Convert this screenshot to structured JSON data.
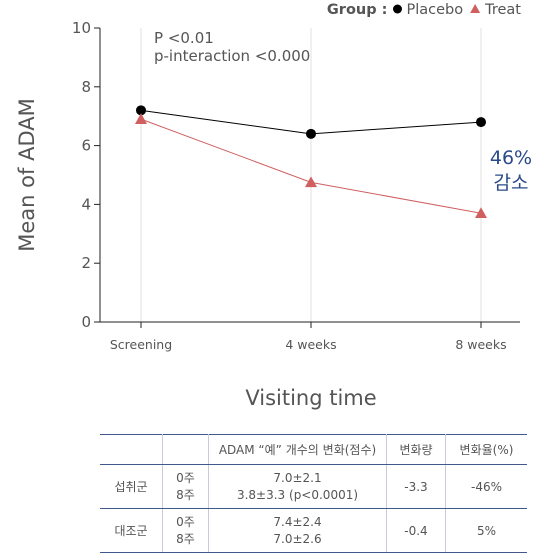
{
  "chart_data": {
    "type": "line",
    "categories": [
      "Screening",
      "4 weeks",
      "8 weeks"
    ],
    "series": [
      {
        "name": "Placebo",
        "values": [
          7.2,
          6.4,
          6.8
        ],
        "color": "#000000",
        "marker": "circle"
      },
      {
        "name": "Treat",
        "values": [
          6.9,
          4.75,
          3.7
        ],
        "color": "#d06060",
        "marker": "triangle"
      }
    ],
    "xlabel": "Visiting time",
    "ylabel": "Mean of ADAM",
    "ylim": [
      0,
      10
    ],
    "yticks": [
      "0",
      "2",
      "4",
      "6",
      "8",
      "10"
    ],
    "grid": "vertical",
    "legend": {
      "title": "Group :",
      "position": "top-right"
    },
    "annotations": {
      "stats_line1": "P <0.01",
      "stats_line2": "p-interaction <0.000",
      "callout_line1": "46%",
      "callout_line2": "감소"
    }
  },
  "table": {
    "headers": [
      "",
      "",
      "ADAM “예” 개수의 변화(점수)",
      "변화량",
      "변화율(%)"
    ],
    "rows": [
      {
        "group": "섭취군",
        "weeks": [
          "0주",
          "8주"
        ],
        "scores": [
          "7.0±2.1",
          "3.8±3.3 (p<0.0001)"
        ],
        "change": "-3.3",
        "rate": "-46%"
      },
      {
        "group": "대조군",
        "weeks": [
          "0주",
          "8주"
        ],
        "scores": [
          "7.4±2.4",
          "7.0±2.6"
        ],
        "change": "-0.4",
        "rate": "5%"
      }
    ]
  },
  "colors": {
    "placebo": "#000000",
    "treat": "#d06060",
    "callout": "#2a4a8a",
    "table_rule": "#41598a"
  }
}
